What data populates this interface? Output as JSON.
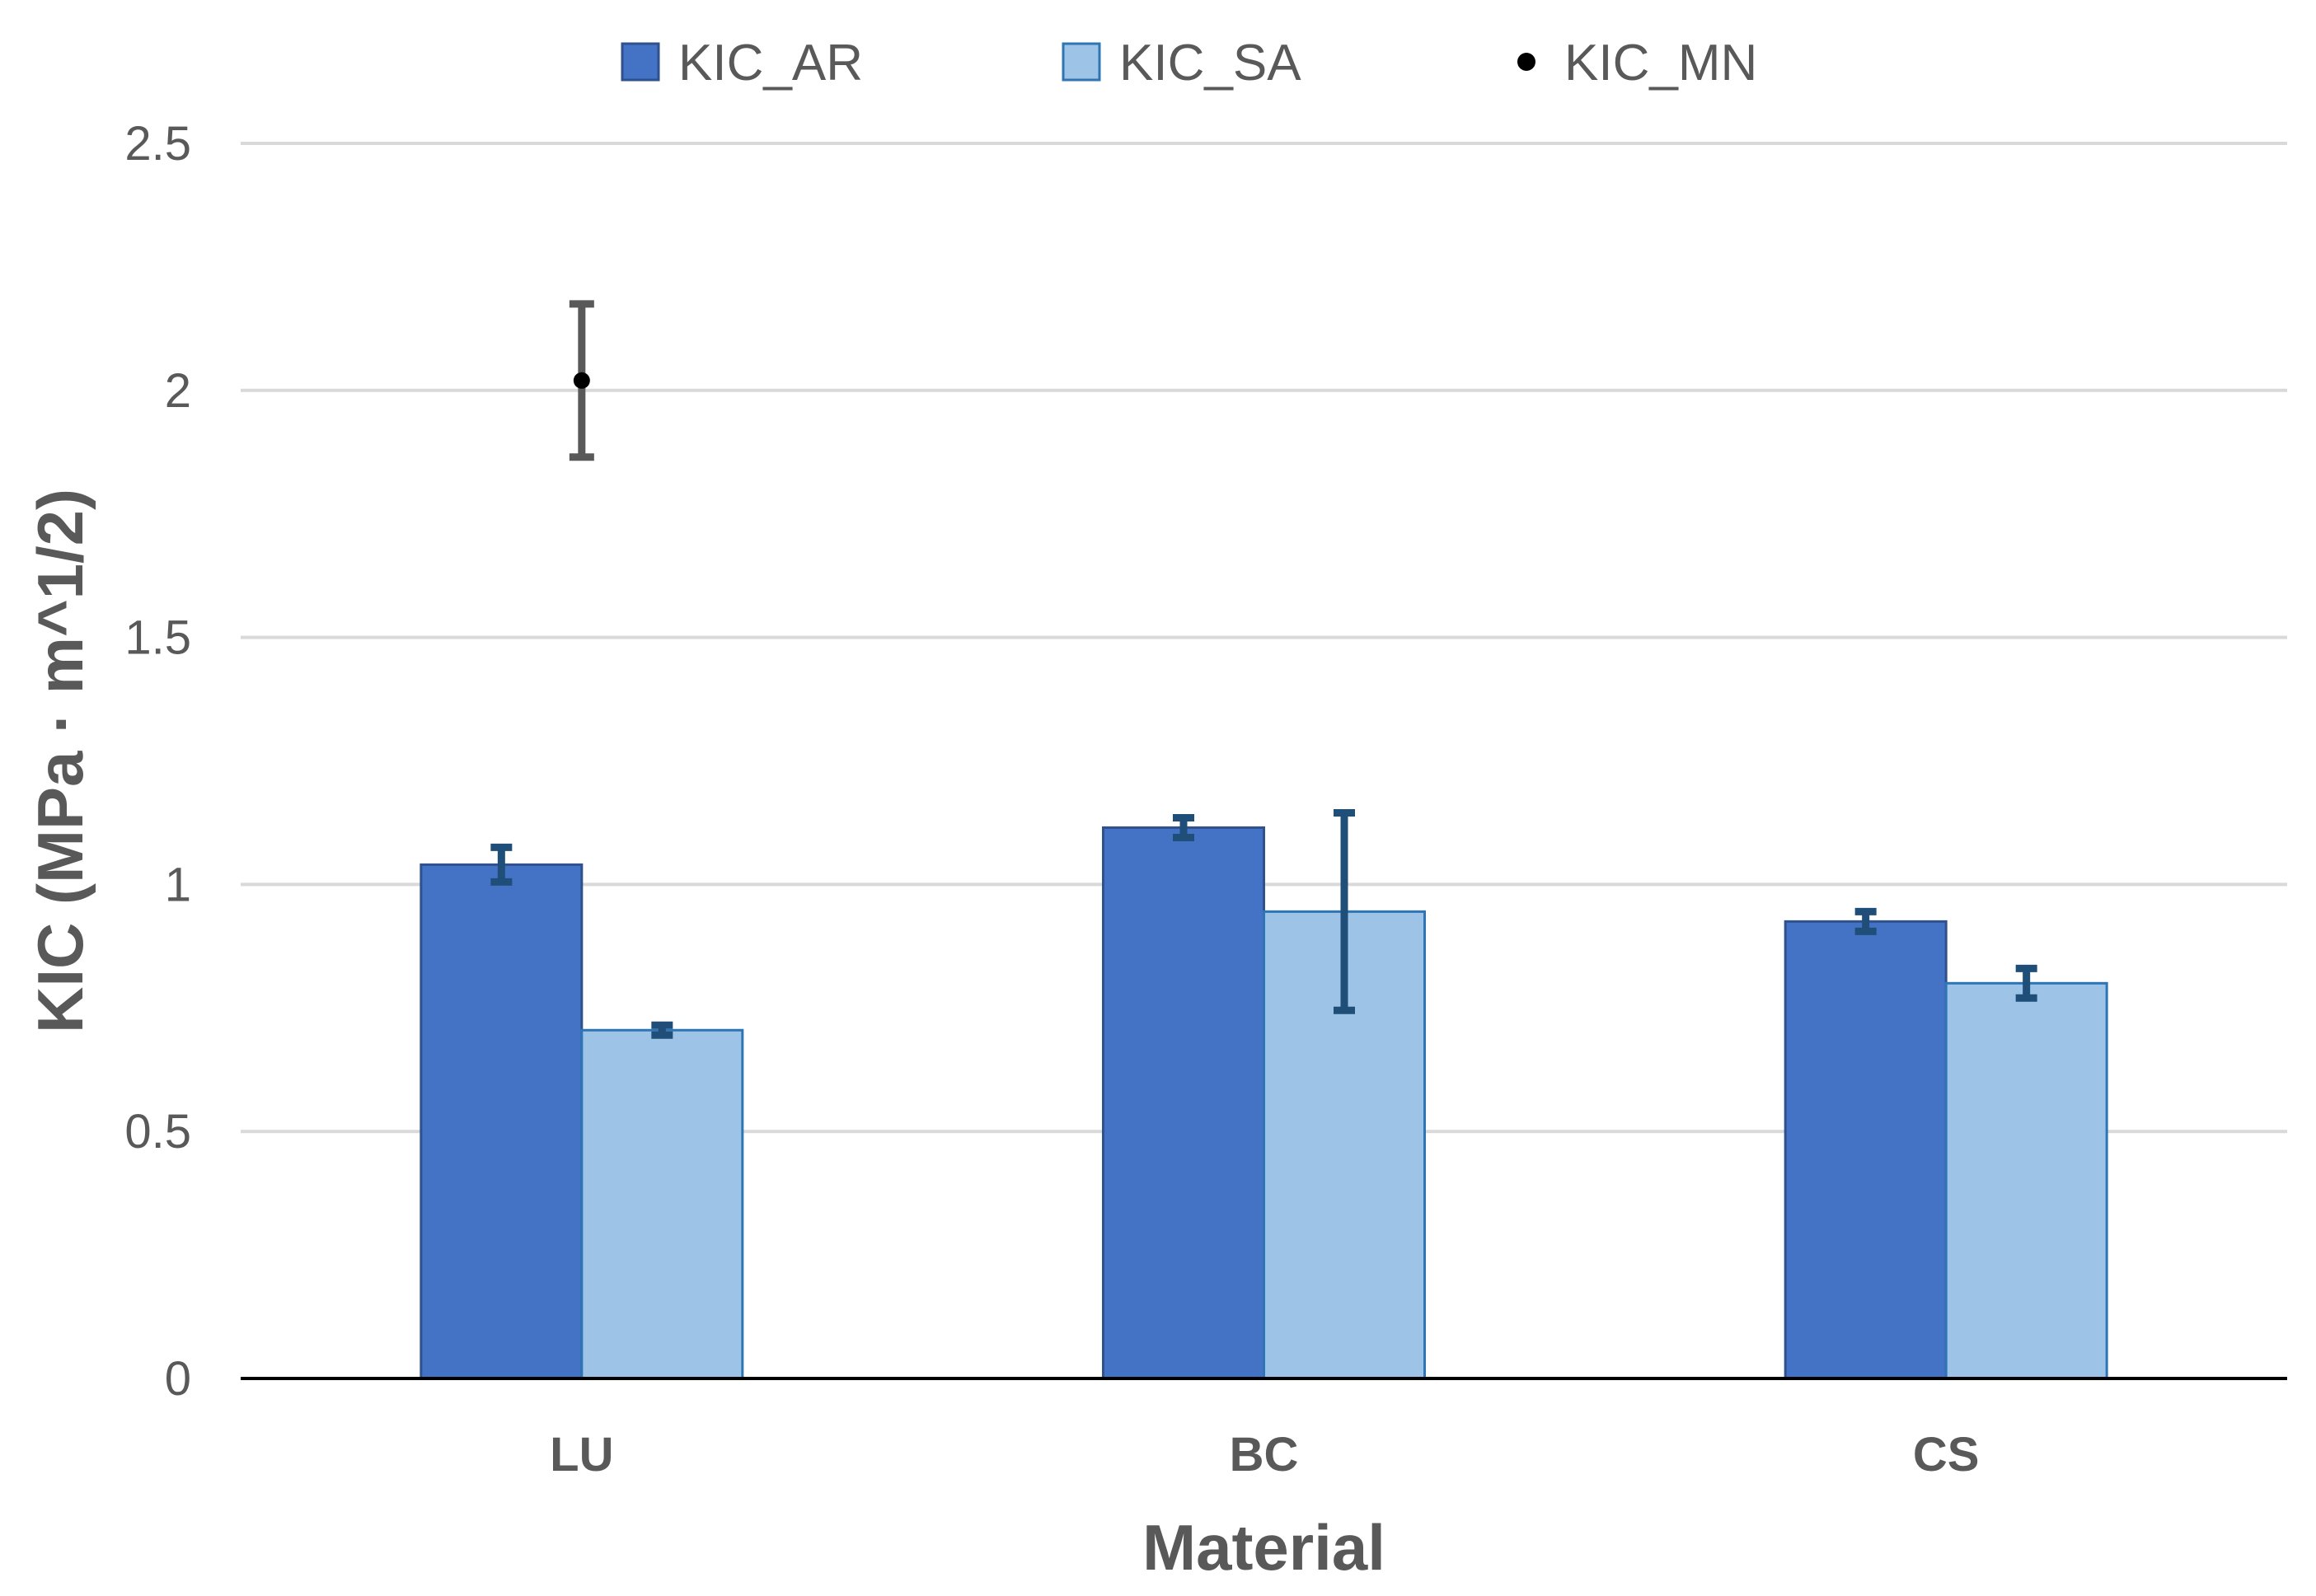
{
  "chart_data": {
    "type": "bar",
    "categories": [
      "LU",
      "BC",
      "CS"
    ],
    "series": [
      {
        "name": "KIC_AR",
        "kind": "bar",
        "color": "#4472C4",
        "stroke": "#2F528F",
        "values": [
          1.04,
          1.115,
          0.925
        ],
        "errors": [
          0.035,
          0.02,
          0.02
        ]
      },
      {
        "name": "KIC_SA",
        "kind": "bar",
        "color": "#9DC3E6",
        "stroke": "#2E75B6",
        "values": [
          0.705,
          0.945,
          0.8
        ],
        "errors": [
          0.01,
          0.2,
          0.03
        ]
      },
      {
        "name": "KIC_MN",
        "kind": "point",
        "color": "#000000",
        "error_color": "#595959",
        "values": [
          2.02,
          null,
          null
        ],
        "errors": [
          0.155,
          null,
          null
        ]
      }
    ],
    "error_bar_color": "#1F4E79",
    "xlabel": "Material",
    "ylabel": "KIC (MPa · m^1/2)",
    "ylim": [
      0,
      2.5
    ],
    "yticks": [
      0,
      0.5,
      1,
      1.5,
      2,
      2.5
    ],
    "ytick_labels": [
      "0",
      "0.5",
      "1",
      "1.5",
      "2",
      "2.5"
    ],
    "grid": true,
    "legend_position": "top-center"
  }
}
